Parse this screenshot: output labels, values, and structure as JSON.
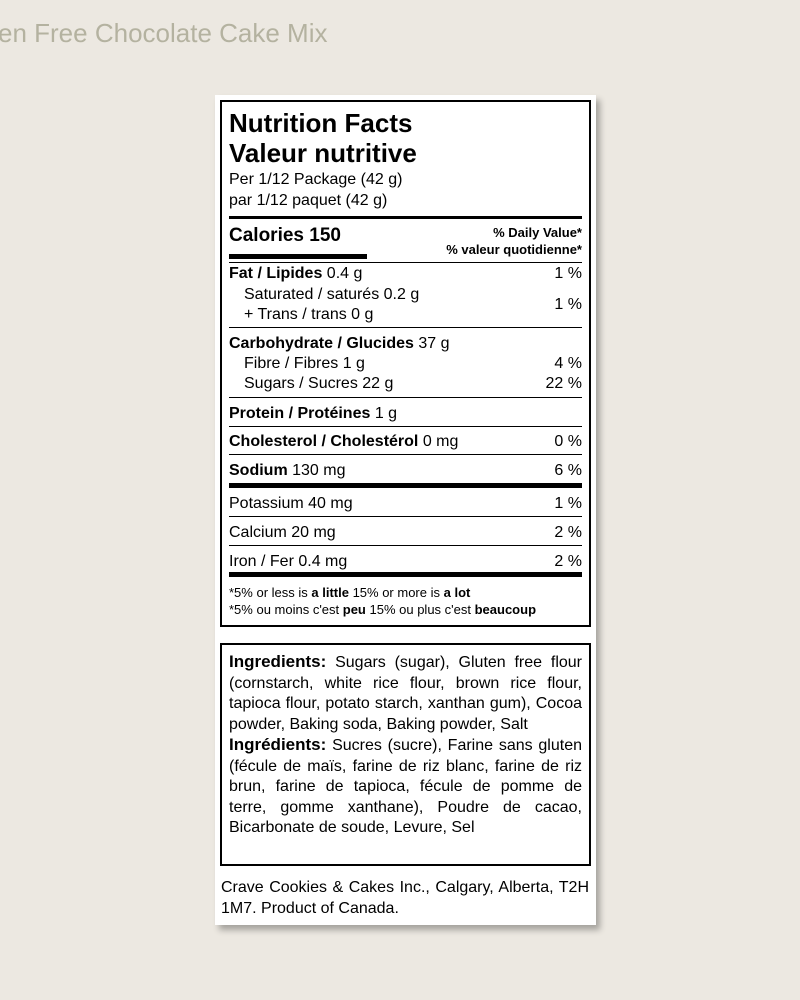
{
  "page_title": "en Free Chocolate Cake Mix",
  "nutrition": {
    "title_en": "Nutrition Facts",
    "title_fr": "Valeur nutritive",
    "serving_en": "Per 1/12 Package (42 g)",
    "serving_fr": "par 1/12 paquet (42 g)",
    "calories_label": "Calories 150",
    "dv_en": "% Daily Value*",
    "dv_fr": "% valeur quotidienne*",
    "fat": {
      "label": "Fat / Lipides",
      "amount": "0.4 g",
      "dv": "1 %"
    },
    "saturated": "Saturated / saturés 0.2 g",
    "trans": "+ Trans / trans 0 g",
    "sat_trans_dv": "1 %",
    "carb": {
      "label": "Carbohydrate / Glucides",
      "amount": "37 g"
    },
    "fibre": {
      "label": "Fibre / Fibres 1 g",
      "dv": "4 %"
    },
    "sugars": {
      "label": "Sugars / Sucres 22 g",
      "dv": "22 %"
    },
    "protein": {
      "label": "Protein / Protéines",
      "amount": "1 g"
    },
    "cholesterol": {
      "label": "Cholesterol / Cholestérol",
      "amount": "0 mg",
      "dv": "0 %"
    },
    "sodium": {
      "label": "Sodium",
      "amount": "130 mg",
      "dv": "6 %"
    },
    "potassium": {
      "label": "Potassium 40 mg",
      "dv": "1 %"
    },
    "calcium": {
      "label": "Calcium 20 mg",
      "dv": "2 %"
    },
    "iron": {
      "label": "Iron / Fer 0.4 mg",
      "dv": "2 %"
    },
    "foot_en": [
      "*5% or less is ",
      "a little",
      " 15% or more is ",
      "a lot"
    ],
    "foot_fr": [
      "*5% ou moins c'est ",
      "peu",
      " 15% ou plus c'est ",
      "beaucoup"
    ]
  },
  "ingredients": {
    "en_label": "Ingredients:",
    "en_text": " Sugars (sugar), Gluten free flour (cornstarch, white rice flour, brown rice flour, tapioca flour, potato starch, xanthan gum), Cocoa powder, Baking soda, Baking powder, Salt",
    "fr_label": "Ingrédients:",
    "fr_text": " Sucres (sucre), Farine sans gluten (fécule de maïs, farine de riz blanc, farine de riz brun, farine de tapioca, fécule de pomme de terre, gomme xanthane), Poudre de cacao, Bicarbonate de soude, Levure, Sel"
  },
  "footer": "Crave Cookies & Cakes Inc., Calgary, Alberta, T2H 1M7. Product of Canada."
}
